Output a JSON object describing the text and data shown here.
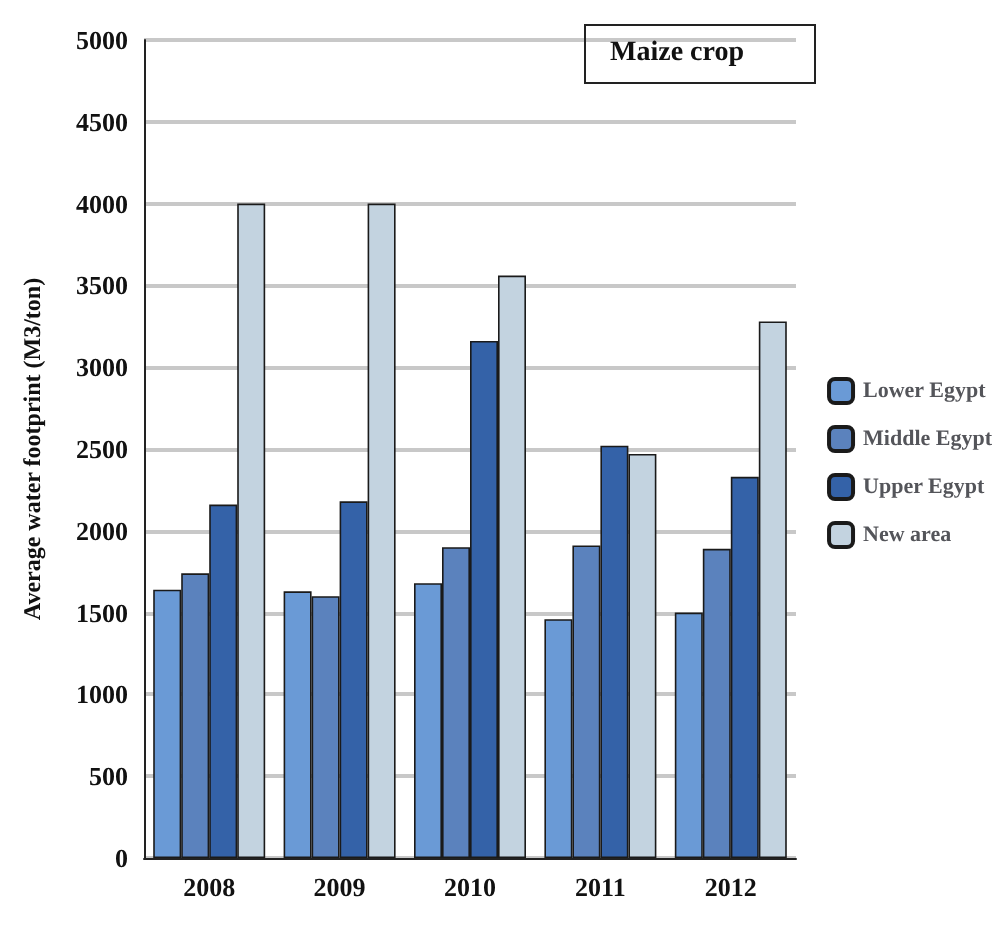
{
  "chart_data": {
    "type": "bar",
    "ylabel": "Average water footprint (M3/ton)",
    "annotations": [
      "Maize crop"
    ],
    "categories": [
      "2008",
      "2009",
      "2010",
      "2011",
      "2012"
    ],
    "series": [
      {
        "name": "Lower Egypt",
        "color": "#6a9ad6",
        "values": [
          1640,
          1630,
          1680,
          1460,
          1500
        ]
      },
      {
        "name": "Middle Egypt",
        "color": "#5b82bd",
        "values": [
          1740,
          1600,
          1900,
          1910,
          1890
        ]
      },
      {
        "name": "Upper Egypt",
        "color": "#3462a8",
        "values": [
          2160,
          2180,
          3160,
          2520,
          2330
        ]
      },
      {
        "name": "New area",
        "color": "#c3d3e0",
        "values": [
          4000,
          4000,
          3560,
          2470,
          3280
        ]
      }
    ],
    "ylim": [
      0,
      5000
    ],
    "yticks": [
      0,
      500,
      1000,
      1500,
      2000,
      2500,
      3000,
      3500,
      4000,
      4500,
      5000
    ],
    "grid": "y",
    "legend": "right"
  }
}
